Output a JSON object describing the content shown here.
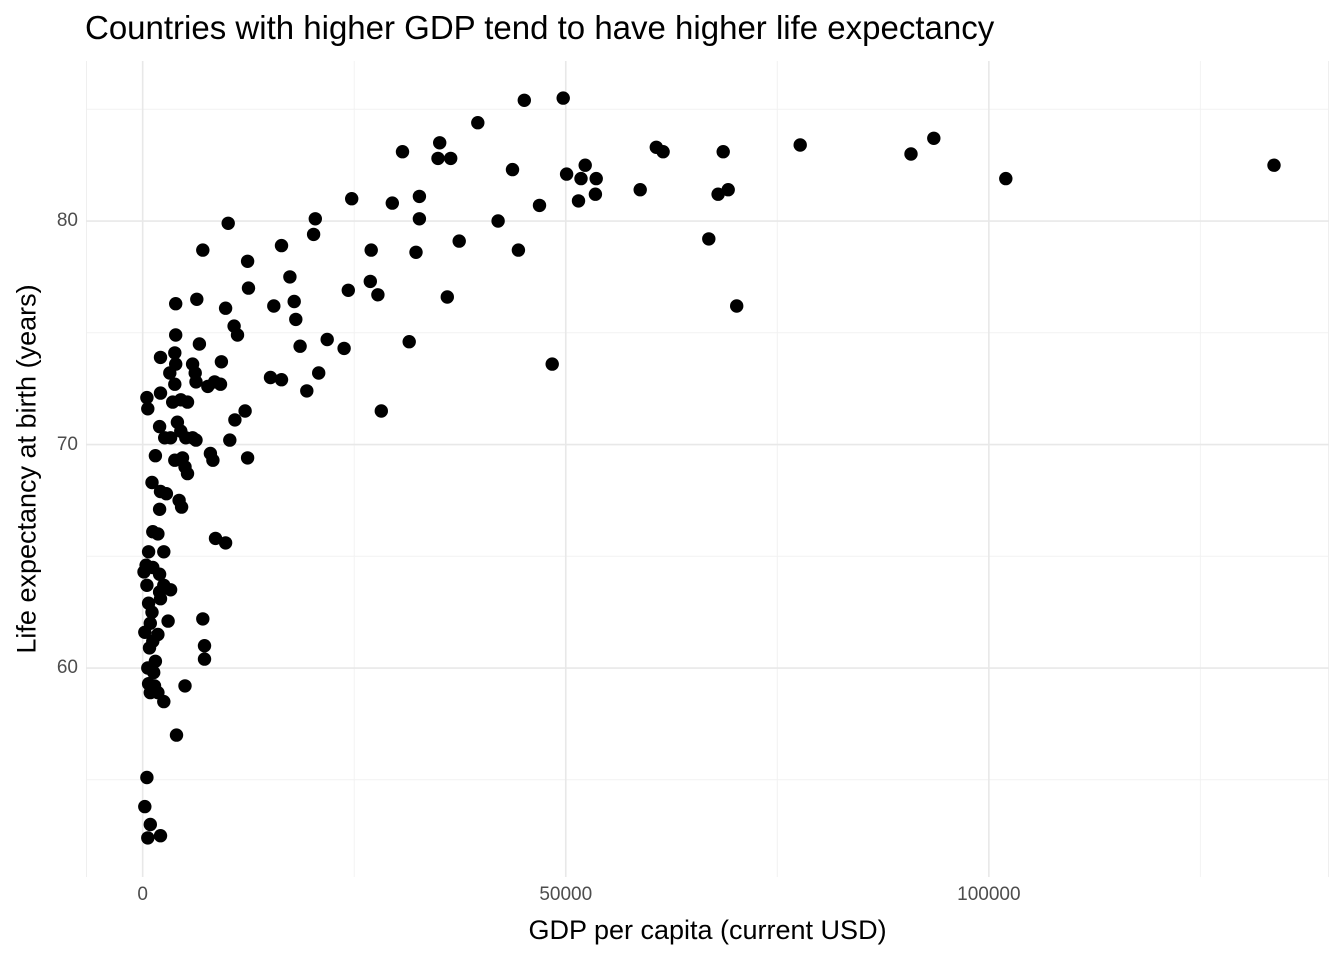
{
  "chart_data": {
    "type": "scatter",
    "title": "Countries with higher GDP tend to have higher life expectancy",
    "xlabel": "GDP per capita (current USD)",
    "ylabel": "Life expectancy at birth (years)",
    "xlim": [
      -6700,
      140200
    ],
    "ylim": [
      50.65,
      87.16
    ],
    "x_ticks": [
      {
        "value": 0,
        "label": "0"
      },
      {
        "value": 50000,
        "label": "50000"
      },
      {
        "value": 100000,
        "label": "100000"
      }
    ],
    "x_minor_ticks": [
      25000,
      75000,
      125000
    ],
    "y_ticks": [
      {
        "value": 60,
        "label": "60"
      },
      {
        "value": 70,
        "label": "70"
      },
      {
        "value": 80,
        "label": "80"
      }
    ],
    "y_minor_ticks": [
      55,
      65,
      75,
      85
    ],
    "grid": true,
    "legend": false,
    "point_radius_px": 6.7,
    "points": [
      [
        12400,
        78.2
      ],
      [
        17400,
        77.5
      ],
      [
        12500,
        77.0
      ],
      [
        3900,
        76.3
      ],
      [
        6400,
        76.5
      ],
      [
        15500,
        76.2
      ],
      [
        17900,
        76.4
      ],
      [
        9800,
        76.1
      ],
      [
        10800,
        75.3
      ],
      [
        11200,
        74.9
      ],
      [
        3900,
        74.9
      ],
      [
        18100,
        75.6
      ],
      [
        6700,
        74.5
      ],
      [
        18600,
        74.4
      ],
      [
        2100,
        73.9
      ],
      [
        3800,
        74.1
      ],
      [
        3900,
        73.6
      ],
      [
        5900,
        73.6
      ],
      [
        9300,
        73.7
      ],
      [
        15100,
        73.0
      ],
      [
        16400,
        72.9
      ],
      [
        3800,
        72.7
      ],
      [
        6300,
        72.8
      ],
      [
        7700,
        72.6
      ],
      [
        8500,
        72.8
      ],
      [
        9200,
        72.7
      ],
      [
        500,
        72.1
      ],
      [
        600,
        71.6
      ],
      [
        2100,
        72.3
      ],
      [
        3550,
        71.9
      ],
      [
        4500,
        72.0
      ],
      [
        5300,
        71.9
      ],
      [
        12100,
        71.5
      ],
      [
        10900,
        71.1
      ],
      [
        2000,
        70.8
      ],
      [
        4100,
        71.0
      ],
      [
        4500,
        70.6
      ],
      [
        2600,
        70.3
      ],
      [
        3300,
        70.3
      ],
      [
        5100,
        70.3
      ],
      [
        5900,
        70.3
      ],
      [
        6300,
        70.2
      ],
      [
        10300,
        70.2
      ],
      [
        1500,
        69.5
      ],
      [
        3800,
        69.3
      ],
      [
        4700,
        69.4
      ],
      [
        5000,
        69.0
      ],
      [
        8000,
        69.6
      ],
      [
        8300,
        69.3
      ],
      [
        12400,
        69.4
      ],
      [
        5300,
        68.7
      ],
      [
        1100,
        68.3
      ],
      [
        2100,
        67.9
      ],
      [
        2800,
        67.8
      ],
      [
        2000,
        67.1
      ],
      [
        4300,
        67.5
      ],
      [
        4600,
        67.2
      ],
      [
        1200,
        66.1
      ],
      [
        1800,
        66.0
      ],
      [
        8600,
        65.8
      ],
      [
        9800,
        65.6
      ],
      [
        700,
        65.2
      ],
      [
        2500,
        65.2
      ],
      [
        400,
        64.6
      ],
      [
        1200,
        64.5
      ],
      [
        150,
        64.3
      ],
      [
        2000,
        64.2
      ],
      [
        500,
        63.7
      ],
      [
        2500,
        63.7
      ],
      [
        3300,
        63.5
      ],
      [
        2000,
        63.4
      ],
      [
        2100,
        63.1
      ],
      [
        700,
        62.9
      ],
      [
        1100,
        62.5
      ],
      [
        3000,
        62.1
      ],
      [
        7100,
        62.2
      ],
      [
        900,
        62.0
      ],
      [
        250,
        61.6
      ],
      [
        1800,
        61.5
      ],
      [
        1200,
        61.2
      ],
      [
        800,
        60.9
      ],
      [
        7300,
        61.0
      ],
      [
        7300,
        60.4
      ],
      [
        1500,
        60.3
      ],
      [
        600,
        60.0
      ],
      [
        1300,
        59.8
      ],
      [
        700,
        59.3
      ],
      [
        1400,
        59.2
      ],
      [
        1800,
        58.9
      ],
      [
        900,
        58.9
      ],
      [
        2500,
        58.5
      ],
      [
        5000,
        59.2
      ],
      [
        4000,
        57.0
      ],
      [
        500,
        55.1
      ],
      [
        250,
        53.8
      ],
      [
        900,
        53.0
      ],
      [
        600,
        52.4
      ],
      [
        2100,
        52.5
      ],
      [
        3200,
        73.2
      ],
      [
        6200,
        73.2
      ],
      [
        24700,
        81.0
      ],
      [
        29500,
        80.8
      ],
      [
        32700,
        81.1
      ],
      [
        20400,
        80.1
      ],
      [
        32700,
        80.1
      ],
      [
        42000,
        80.0
      ],
      [
        20200,
        79.4
      ],
      [
        27000,
        78.7
      ],
      [
        32300,
        78.6
      ],
      [
        37400,
        79.1
      ],
      [
        44400,
        78.7
      ],
      [
        26900,
        77.3
      ],
      [
        24300,
        76.9
      ],
      [
        27800,
        76.7
      ],
      [
        36000,
        76.6
      ],
      [
        21800,
        74.7
      ],
      [
        23800,
        74.3
      ],
      [
        31500,
        74.6
      ],
      [
        20800,
        73.2
      ],
      [
        19400,
        72.4
      ],
      [
        28200,
        71.5
      ],
      [
        39600,
        84.4
      ],
      [
        35100,
        83.5
      ],
      [
        30700,
        83.1
      ],
      [
        34900,
        82.8
      ],
      [
        36400,
        82.8
      ],
      [
        10100,
        79.9
      ],
      [
        7100,
        78.7
      ],
      [
        16400,
        78.9
      ],
      [
        45100,
        85.4
      ],
      [
        49700,
        85.5
      ],
      [
        60700,
        83.3
      ],
      [
        61500,
        83.1
      ],
      [
        68600,
        83.1
      ],
      [
        77700,
        83.4
      ],
      [
        43700,
        82.3
      ],
      [
        50100,
        82.1
      ],
      [
        52300,
        82.5
      ],
      [
        51800,
        81.9
      ],
      [
        53600,
        81.9
      ],
      [
        51500,
        80.9
      ],
      [
        53500,
        81.2
      ],
      [
        58800,
        81.4
      ],
      [
        46900,
        80.7
      ],
      [
        68000,
        81.2
      ],
      [
        69200,
        81.4
      ],
      [
        66900,
        79.2
      ],
      [
        70200,
        76.2
      ],
      [
        48400,
        73.6
      ],
      [
        90800,
        83.0
      ],
      [
        93500,
        83.7
      ],
      [
        102000,
        81.9
      ],
      [
        133700,
        82.5
      ]
    ]
  },
  "colors": {
    "background": "#ffffff",
    "point": "#000000",
    "grid_major": "#e8e8e8",
    "grid_minor": "#f2f2f2",
    "panel_edge": "#efefef",
    "tick_label": "#4d4d4d",
    "title": "#000000"
  }
}
